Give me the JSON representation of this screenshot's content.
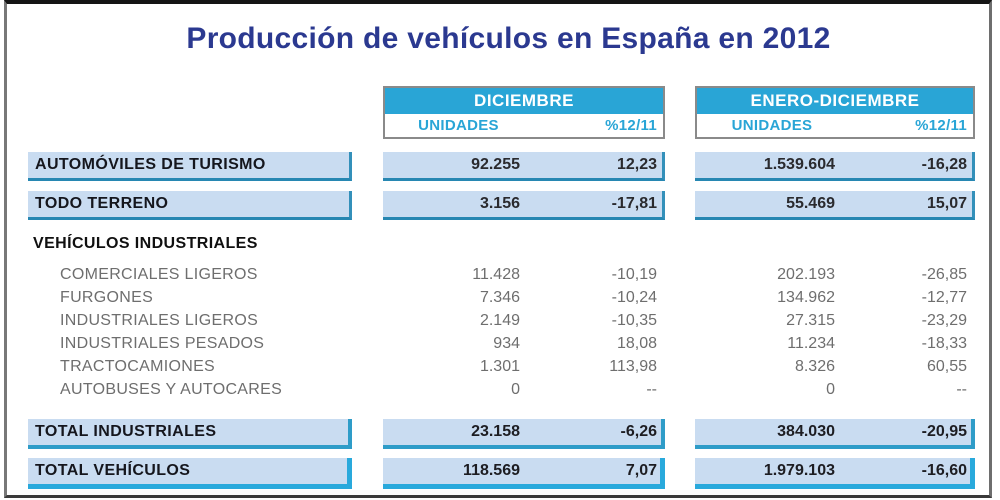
{
  "title": "Producción de vehículos en España en 2012",
  "table": {
    "column_groups": [
      {
        "label": "DICIEMBRE",
        "subcolumns": [
          "UNIDADES",
          "%12/11"
        ]
      },
      {
        "label": "ENERO-DICIEMBRE",
        "subcolumns": [
          "UNIDADES",
          "%12/11"
        ]
      }
    ],
    "rows": [
      {
        "type": "boxed",
        "label": "AUTOMÓVILES DE TURISMO",
        "dic": {
          "unidades": "92.255",
          "pct": "12,23"
        },
        "ene": {
          "unidades": "1.539.604",
          "pct": "-16,28"
        }
      },
      {
        "type": "boxed",
        "label": "TODO TERRENO",
        "dic": {
          "unidades": "3.156",
          "pct": "-17,81"
        },
        "ene": {
          "unidades": "55.469",
          "pct": "15,07"
        }
      },
      {
        "type": "section",
        "label": "VEHÍCULOS INDUSTRIALES"
      },
      {
        "type": "sub",
        "label": "COMERCIALES LIGEROS",
        "dic": {
          "unidades": "11.428",
          "pct": "-10,19"
        },
        "ene": {
          "unidades": "202.193",
          "pct": "-26,85"
        }
      },
      {
        "type": "sub",
        "label": "FURGONES",
        "dic": {
          "unidades": "7.346",
          "pct": "-10,24"
        },
        "ene": {
          "unidades": "134.962",
          "pct": "-12,77"
        }
      },
      {
        "type": "sub",
        "label": "INDUSTRIALES LIGEROS",
        "dic": {
          "unidades": "2.149",
          "pct": "-10,35"
        },
        "ene": {
          "unidades": "27.315",
          "pct": "-23,29"
        }
      },
      {
        "type": "sub",
        "label": "INDUSTRIALES PESADOS",
        "dic": {
          "unidades": "934",
          "pct": "18,08"
        },
        "ene": {
          "unidades": "11.234",
          "pct": "-18,33"
        }
      },
      {
        "type": "sub",
        "label": "TRACTOCAMIONES",
        "dic": {
          "unidades": "1.301",
          "pct": "113,98"
        },
        "ene": {
          "unidades": "8.326",
          "pct": "60,55"
        }
      },
      {
        "type": "sub",
        "label": "AUTOBUSES Y AUTOCARES",
        "dic": {
          "unidades": "0",
          "pct": "--"
        },
        "ene": {
          "unidades": "0",
          "pct": "--"
        }
      },
      {
        "type": "total",
        "label": "TOTAL INDUSTRIALES",
        "dic": {
          "unidades": "23.158",
          "pct": "-6,26"
        },
        "ene": {
          "unidades": "384.030",
          "pct": "-20,95"
        }
      },
      {
        "type": "total-final",
        "label": "TOTAL VEHÍCULOS",
        "dic": {
          "unidades": "118.569",
          "pct": "7,07"
        },
        "ene": {
          "unidades": "1.979.103",
          "pct": "-16,60"
        }
      }
    ]
  },
  "colors": {
    "title_blue": "#2B3990",
    "header_cyan": "#29A5D6",
    "cell_background": "#C9DCF1",
    "cell_border_teal": "#2787B2",
    "total_border_cyan": "#29A9DC",
    "sub_text_gray": "#6e6e6e"
  },
  "chart_data": {
    "type": "table",
    "title": "Producción de vehículos en España en 2012",
    "column_groups": [
      "DICIEMBRE",
      "ENERO-DICIEMBRE"
    ],
    "columns": [
      "DICIEMBRE UNIDADES",
      "DICIEMBRE %12/11",
      "ENERO-DICIEMBRE UNIDADES",
      "ENERO-DICIEMBRE %12/11"
    ],
    "rows": [
      {
        "label": "AUTOMÓVILES DE TURISMO",
        "values": [
          92255,
          12.23,
          1539604,
          -16.28
        ]
      },
      {
        "label": "TODO TERRENO",
        "values": [
          3156,
          -17.81,
          55469,
          15.07
        ]
      },
      {
        "label": "VEHÍCULOS INDUSTRIALES",
        "values": [
          null,
          null,
          null,
          null
        ]
      },
      {
        "label": "COMERCIALES LIGEROS",
        "values": [
          11428,
          -10.19,
          202193,
          -26.85
        ]
      },
      {
        "label": "FURGONES",
        "values": [
          7346,
          -10.24,
          134962,
          -12.77
        ]
      },
      {
        "label": "INDUSTRIALES LIGEROS",
        "values": [
          2149,
          -10.35,
          27315,
          -23.29
        ]
      },
      {
        "label": "INDUSTRIALES PESADOS",
        "values": [
          934,
          18.08,
          11234,
          -18.33
        ]
      },
      {
        "label": "TRACTOCAMIONES",
        "values": [
          1301,
          113.98,
          8326,
          60.55
        ]
      },
      {
        "label": "AUTOBUSES Y AUTOCARES",
        "values": [
          0,
          null,
          0,
          null
        ]
      },
      {
        "label": "TOTAL INDUSTRIALES",
        "values": [
          23158,
          -6.26,
          384030,
          -20.95
        ]
      },
      {
        "label": "TOTAL VEHÍCULOS",
        "values": [
          118569,
          7.07,
          1979103,
          -16.6
        ]
      }
    ]
  }
}
